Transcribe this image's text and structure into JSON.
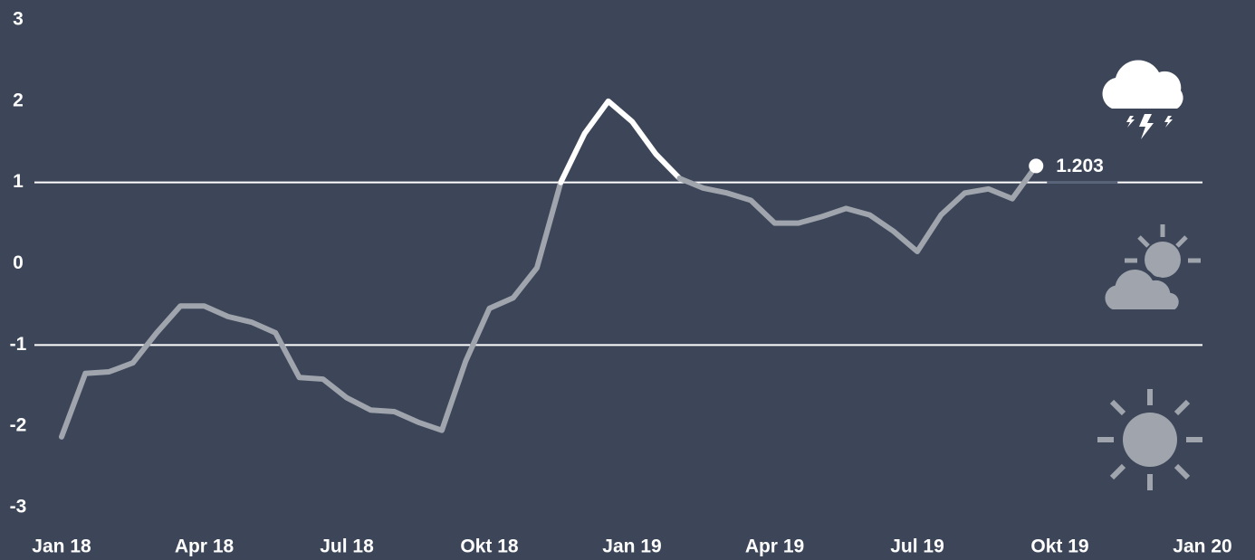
{
  "chart_data": {
    "type": "line",
    "categories": [
      "Jan 18",
      null,
      null,
      null,
      null,
      null,
      "Apr 18",
      null,
      null,
      null,
      null,
      null,
      "Jul 18",
      null,
      null,
      null,
      null,
      null,
      "Okt 18",
      null,
      null,
      null,
      null,
      null,
      "Jan 19",
      null,
      null,
      null,
      null,
      null,
      "Apr 19",
      null,
      null,
      null,
      null,
      null,
      "Jul 19",
      null,
      null,
      null,
      null,
      null,
      "Okt 19",
      null,
      null,
      null,
      null,
      null,
      "Jan 20"
    ],
    "series": [
      {
        "color": "#a0a5ad",
        "highlight_color": "#ffffff",
        "values": [
          -2.13,
          -1.35,
          -1.33,
          -1.22,
          -0.85,
          -0.52,
          -0.52,
          -0.65,
          -0.72,
          -0.85,
          -1.4,
          -1.42,
          -1.65,
          -1.8,
          -1.82,
          -1.95,
          -2.05,
          -1.2,
          -0.55,
          -0.42,
          -0.05,
          1.0,
          1.6,
          2.0,
          1.75,
          1.35,
          1.05,
          0.93,
          0.87,
          0.78,
          0.5,
          0.5,
          0.58,
          0.68,
          0.6,
          0.4,
          0.15,
          0.6,
          0.87,
          0.92,
          0.8,
          1.203,
          null,
          null,
          null,
          null,
          null,
          null,
          null
        ]
      }
    ],
    "ylim": [
      -3,
      3
    ],
    "yticks": [
      -3,
      -2,
      -1,
      0,
      1,
      2,
      3
    ],
    "threshold_lines": [
      -1,
      1
    ],
    "highlight_above": 1
  }
}
